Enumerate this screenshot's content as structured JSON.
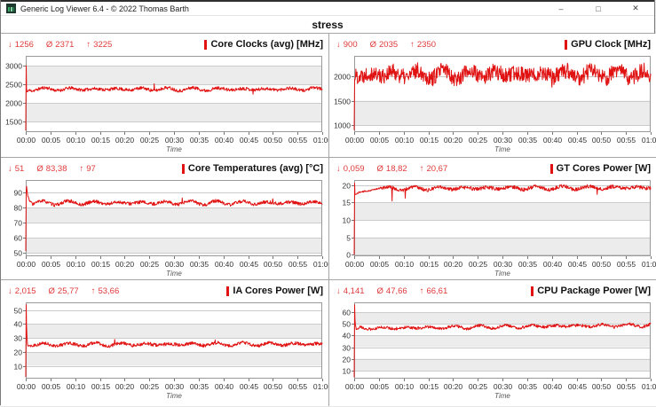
{
  "window": {
    "title": "Generic Log Viewer 6.4 - © 2022 Thomas Barth",
    "controls": {
      "minimize": "–",
      "maximize": "□",
      "close": "✕"
    }
  },
  "header": {
    "title": "stress"
  },
  "symbols": {
    "min": "↓",
    "avg": "Ø",
    "max": "↑"
  },
  "colors": {
    "series_red": "#e01212",
    "stats_red": "#e03a3a",
    "grid_line": "#cccccc",
    "band_gray": "#ececec",
    "plot_border": "#999999",
    "panel_divider": "#a6a6a6"
  },
  "xlabel": "Time",
  "xticklabels": [
    "00:00",
    "00:05",
    "00:10",
    "00:15",
    "00:20",
    "00:25",
    "00:30",
    "00:35",
    "00:40",
    "00:45",
    "00:50",
    "00:55",
    "01:00"
  ],
  "x_range_seconds": [
    0,
    3600
  ],
  "chart_data": [
    {
      "type": "line",
      "title": "Core Clocks (avg) [MHz]",
      "stats": {
        "min": "1256",
        "avg": "2371",
        "max": "3225"
      },
      "ylim": [
        1210,
        3260
      ],
      "yticks": [
        1500,
        2000,
        2500,
        3000
      ],
      "yticklabels": [
        "1500",
        "2000",
        "2500",
        "3000"
      ],
      "series": {
        "transient": [
          [
            0,
            1256
          ],
          [
            4,
            3225
          ],
          [
            7,
            2520
          ],
          [
            12,
            2270
          ],
          [
            30,
            2330
          ]
        ],
        "mean": 2365,
        "noise": 42,
        "wobble": 28,
        "drift": 0,
        "events": [
          [
            1560,
            2510
          ],
          [
            2760,
            2230
          ]
        ],
        "seed": 11
      }
    },
    {
      "type": "line",
      "title": "GPU Clock [MHz]",
      "stats": {
        "min": "900",
        "avg": "2035",
        "max": "2350"
      },
      "ylim": [
        860,
        2420
      ],
      "yticks": [
        1000,
        1500,
        2000
      ],
      "yticklabels": [
        "1000",
        "1500",
        "2000"
      ],
      "series": {
        "transient": [
          [
            0,
            900
          ],
          [
            4,
            2150
          ]
        ],
        "mean": 2045,
        "noise": 165,
        "wobble": 60,
        "drift": 0,
        "events": [
          [
            2400,
            1780
          ]
        ],
        "seed": 22
      }
    },
    {
      "type": "line",
      "title": "Core Temperatures (avg) [°C]",
      "stats": {
        "min": "51",
        "avg": "83,38",
        "max": "97"
      },
      "ylim": [
        47.5,
        98.5
      ],
      "yticks": [
        50,
        60,
        70,
        80,
        90
      ],
      "yticklabels": [
        "50",
        "60",
        "70",
        "80",
        "90"
      ],
      "series": {
        "transient": [
          [
            0,
            51
          ],
          [
            6,
            97
          ],
          [
            20,
            89
          ],
          [
            45,
            84.5
          ],
          [
            80,
            83.2
          ]
        ],
        "mean": 83.2,
        "noise": 1.1,
        "wobble": 0.9,
        "drift": 0,
        "events": [
          [
            1900,
            86.5
          ],
          [
            3000,
            86
          ]
        ],
        "seed": 33
      }
    },
    {
      "type": "line",
      "title": "GT Cores Power [W]",
      "stats": {
        "min": "0,059",
        "avg": "18,82",
        "max": "20,67"
      },
      "ylim": [
        -0.4,
        21.4
      ],
      "yticks": [
        0,
        5,
        10,
        15,
        20
      ],
      "yticklabels": [
        "0",
        "5",
        "10",
        "15",
        "20"
      ],
      "series": {
        "transient": [
          [
            0,
            0.059
          ],
          [
            5,
            20.67
          ],
          [
            9,
            17.1
          ],
          [
            60,
            17.9
          ],
          [
            200,
            18.4
          ],
          [
            330,
            19.2
          ]
        ],
        "mean": 19.1,
        "noise": 0.5,
        "wobble": 0.35,
        "drift": 0.15,
        "events": [
          [
            460,
            15.4
          ],
          [
            620,
            16.2
          ],
          [
            2950,
            17.3
          ]
        ],
        "seed": 44
      }
    },
    {
      "type": "line",
      "title": "IA Cores Power [W]",
      "stats": {
        "min": "2,015",
        "avg": "25,77",
        "max": "53,66"
      },
      "ylim": [
        0.8,
        55.5
      ],
      "yticks": [
        10,
        20,
        30,
        40,
        50
      ],
      "yticklabels": [
        "10",
        "20",
        "30",
        "40",
        "50"
      ],
      "series": {
        "transient": [
          [
            0,
            2.015
          ],
          [
            5,
            53.66
          ],
          [
            11,
            35
          ],
          [
            22,
            24.2
          ],
          [
            45,
            24.6
          ]
        ],
        "mean": 25.4,
        "noise": 1.15,
        "wobble": 0.8,
        "drift": 0.2,
        "events": [
          [
            1080,
            29
          ],
          [
            2300,
            28.5
          ]
        ],
        "seed": 55
      }
    },
    {
      "type": "line",
      "title": "CPU Package Power [W]",
      "stats": {
        "min": "4,141",
        "avg": "47,66",
        "max": "66,61"
      },
      "ylim": [
        3,
        68.5
      ],
      "yticks": [
        10,
        20,
        30,
        40,
        50,
        60
      ],
      "yticklabels": [
        "10",
        "20",
        "30",
        "40",
        "50",
        "60"
      ],
      "series": {
        "transient": [
          [
            0,
            4.141
          ],
          [
            5,
            66.61
          ],
          [
            11,
            50.5
          ],
          [
            24,
            45.6
          ],
          [
            60,
            46.2
          ]
        ],
        "mean": 47.6,
        "noise": 1.2,
        "wobble": 0.9,
        "drift": 1.4,
        "events": [
          [
            3350,
            51
          ]
        ],
        "seed": 66
      }
    }
  ]
}
